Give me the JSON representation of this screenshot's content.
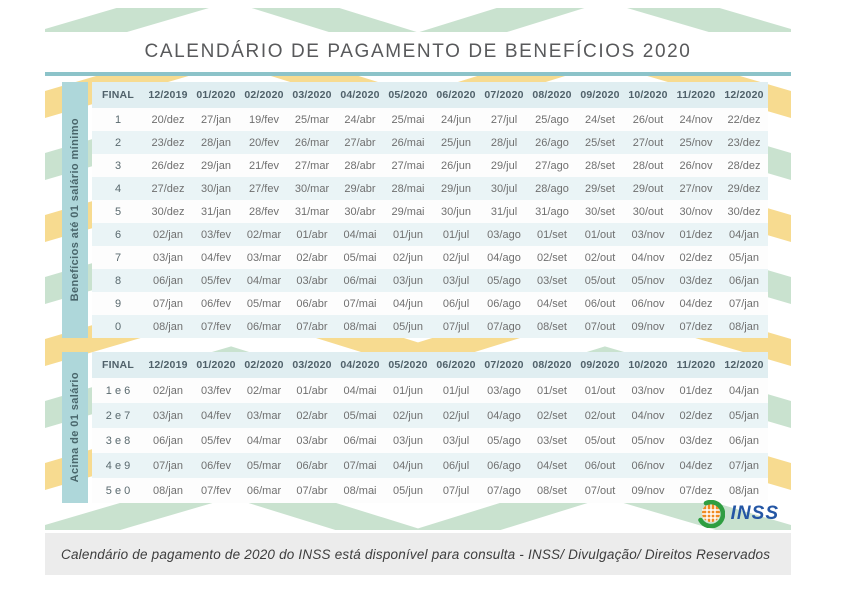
{
  "title": "CALENDÁRIO DE PAGAMENTO DE BENEFÍCIOS 2020",
  "table1": {
    "side_label": "Benefícios até 01 salário mínimo",
    "columns": [
      "FINAL",
      "12/2019",
      "01/2020",
      "02/2020",
      "03/2020",
      "04/2020",
      "05/2020",
      "06/2020",
      "07/2020",
      "08/2020",
      "09/2020",
      "10/2020",
      "11/2020",
      "12/2020"
    ],
    "rows": [
      {
        "final": "1",
        "dates": [
          "20/dez",
          "27/jan",
          "19/fev",
          "25/mar",
          "24/abr",
          "25/mai",
          "24/jun",
          "27/jul",
          "25/ago",
          "24/set",
          "26/out",
          "24/nov",
          "22/dez"
        ]
      },
      {
        "final": "2",
        "dates": [
          "23/dez",
          "28/jan",
          "20/fev",
          "26/mar",
          "27/abr",
          "26/mai",
          "25/jun",
          "28/jul",
          "26/ago",
          "25/set",
          "27/out",
          "25/nov",
          "23/dez"
        ]
      },
      {
        "final": "3",
        "dates": [
          "26/dez",
          "29/jan",
          "21/fev",
          "27/mar",
          "28/abr",
          "27/mai",
          "26/jun",
          "29/jul",
          "27/ago",
          "28/set",
          "28/out",
          "26/nov",
          "28/dez"
        ]
      },
      {
        "final": "4",
        "dates": [
          "27/dez",
          "30/jan",
          "27/fev",
          "30/mar",
          "29/abr",
          "28/mai",
          "29/jun",
          "30/jul",
          "28/ago",
          "29/set",
          "29/out",
          "27/nov",
          "29/dez"
        ]
      },
      {
        "final": "5",
        "dates": [
          "30/dez",
          "31/jan",
          "28/fev",
          "31/mar",
          "30/abr",
          "29/mai",
          "30/jun",
          "31/jul",
          "31/ago",
          "30/set",
          "30/out",
          "30/nov",
          "30/dez"
        ]
      },
      {
        "final": "6",
        "dates": [
          "02/jan",
          "03/fev",
          "02/mar",
          "01/abr",
          "04/mai",
          "01/jun",
          "01/jul",
          "03/ago",
          "01/set",
          "01/out",
          "03/nov",
          "01/dez",
          "04/jan"
        ]
      },
      {
        "final": "7",
        "dates": [
          "03/jan",
          "04/fev",
          "03/mar",
          "02/abr",
          "05/mai",
          "02/jun",
          "02/jul",
          "04/ago",
          "02/set",
          "02/out",
          "04/nov",
          "02/dez",
          "05/jan"
        ]
      },
      {
        "final": "8",
        "dates": [
          "06/jan",
          "05/fev",
          "04/mar",
          "03/abr",
          "06/mai",
          "03/jun",
          "03/jul",
          "05/ago",
          "03/set",
          "05/out",
          "05/nov",
          "03/dez",
          "06/jan"
        ]
      },
      {
        "final": "9",
        "dates": [
          "07/jan",
          "06/fev",
          "05/mar",
          "06/abr",
          "07/mai",
          "04/jun",
          "06/jul",
          "06/ago",
          "04/set",
          "06/out",
          "06/nov",
          "04/dez",
          "07/jan"
        ]
      },
      {
        "final": "0",
        "dates": [
          "08/jan",
          "07/fev",
          "06/mar",
          "07/abr",
          "08/mai",
          "05/jun",
          "07/jul",
          "07/ago",
          "08/set",
          "07/out",
          "09/nov",
          "07/dez",
          "08/jan"
        ]
      }
    ]
  },
  "table2": {
    "side_label": "Acima de 01 salário",
    "columns": [
      "FINAL",
      "12/2019",
      "01/2020",
      "02/2020",
      "03/2020",
      "04/2020",
      "05/2020",
      "06/2020",
      "07/2020",
      "08/2020",
      "09/2020",
      "10/2020",
      "11/2020",
      "12/2020"
    ],
    "rows": [
      {
        "final": "1 e 6",
        "dates": [
          "02/jan",
          "03/fev",
          "02/mar",
          "01/abr",
          "04/mai",
          "01/jun",
          "01/jul",
          "03/ago",
          "01/set",
          "01/out",
          "03/nov",
          "01/dez",
          "04/jan"
        ]
      },
      {
        "final": "2 e 7",
        "dates": [
          "03/jan",
          "04/fev",
          "03/mar",
          "02/abr",
          "05/mai",
          "02/jun",
          "02/jul",
          "04/ago",
          "02/set",
          "02/out",
          "04/nov",
          "02/dez",
          "05/jan"
        ]
      },
      {
        "final": "3 e 8",
        "dates": [
          "06/jan",
          "05/fev",
          "04/mar",
          "03/abr",
          "06/mai",
          "03/jun",
          "03/jul",
          "05/ago",
          "03/set",
          "05/out",
          "05/nov",
          "03/dez",
          "06/jan"
        ]
      },
      {
        "final": "4 e 9",
        "dates": [
          "07/jan",
          "06/fev",
          "05/mar",
          "06/abr",
          "07/mai",
          "04/jun",
          "06/jul",
          "06/ago",
          "04/set",
          "06/out",
          "06/nov",
          "04/dez",
          "07/jan"
        ]
      },
      {
        "final": "5 e 0",
        "dates": [
          "08/jan",
          "07/fev",
          "06/mar",
          "07/abr",
          "08/mai",
          "05/jun",
          "07/jul",
          "07/ago",
          "08/set",
          "07/out",
          "09/nov",
          "07/dez",
          "08/jan"
        ]
      }
    ]
  },
  "logo": {
    "text": "INSS"
  },
  "caption": "Calendário de pagamento de 2020 do INSS está disponível para consulta - INSS/ Divulgação/ Direitos Reservados",
  "colors": {
    "chevron_green": "#c9e2cf",
    "chevron_yellow": "#f7db90",
    "teal_rule": "#8cc3c9",
    "sidebar_teal": "#aed7da",
    "header_band": "#e0eef1",
    "alt_row": "#eaf4f6",
    "inss_blue": "#2456a4",
    "inss_green": "#2f9e41",
    "inss_orange": "#f18a21"
  }
}
